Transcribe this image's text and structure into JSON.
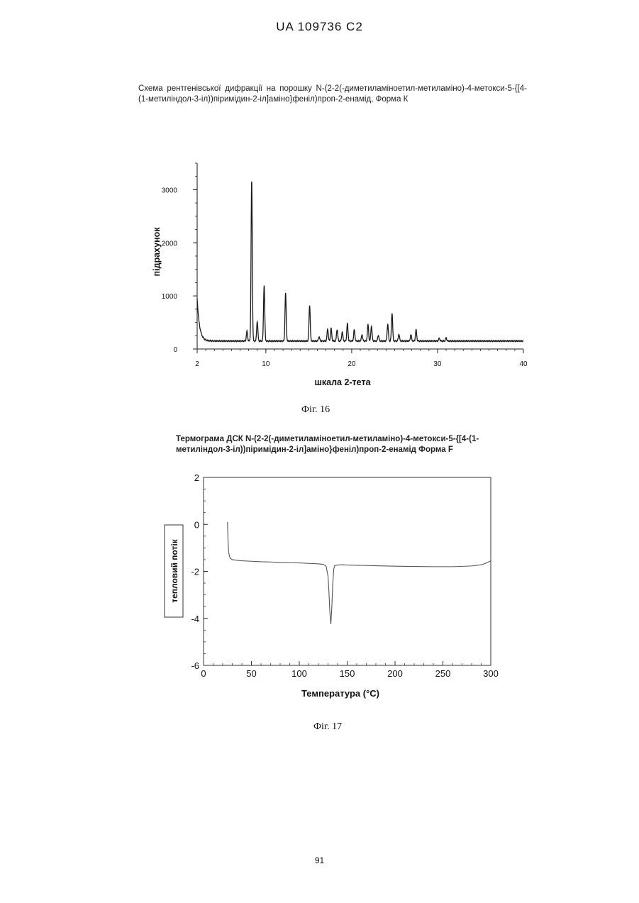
{
  "header": "UA   109736   C2",
  "figure16": {
    "caption": "Схема рентгенівської дифракції на порошку N-(2-2(-диметиламіноетил-метиламіно)-4-метокси-5-{[4-(1-метиліндол-3-іл))піримідин-2-іл]аміно}феніл)проп-2-енамід, Форма К",
    "label": "Фіг. 16"
  },
  "figure17": {
    "caption": "Термограма ДСК N-(2-2(-диметиламіноетил-метиламіно)-4-метокси-5-{[4-(1-метиліндол-3-іл))піримідин-2-іл]аміно}феніл)проп-2-енамід Форма F",
    "label": "Фіг. 17"
  },
  "page_number": "91",
  "chart_data": [
    {
      "type": "line",
      "xlabel": "шкала 2-тета",
      "ylabel": "підрахунок",
      "xlim": [
        2,
        40
      ],
      "ylim": [
        0,
        3500
      ],
      "x_ticks": [
        "2",
        "10",
        "20",
        "30",
        "40"
      ],
      "y_ticks": [
        "0",
        "1000",
        "2000",
        "3000"
      ],
      "x_tick_values": [
        2,
        10,
        20,
        30,
        40
      ],
      "y_tick_values": [
        0,
        1000,
        2000,
        3000
      ],
      "baseline": 150,
      "initial_rise": {
        "x": 2.0,
        "y": 950
      },
      "peaks": [
        {
          "x": 7.8,
          "y": 330
        },
        {
          "x": 8.35,
          "y": 3170
        },
        {
          "x": 9.0,
          "y": 520
        },
        {
          "x": 9.8,
          "y": 1200
        },
        {
          "x": 12.3,
          "y": 1050
        },
        {
          "x": 15.1,
          "y": 830
        },
        {
          "x": 16.2,
          "y": 230
        },
        {
          "x": 17.2,
          "y": 380
        },
        {
          "x": 17.6,
          "y": 390
        },
        {
          "x": 18.3,
          "y": 370
        },
        {
          "x": 18.9,
          "y": 320
        },
        {
          "x": 19.5,
          "y": 480
        },
        {
          "x": 20.3,
          "y": 360
        },
        {
          "x": 21.2,
          "y": 270
        },
        {
          "x": 21.9,
          "y": 460
        },
        {
          "x": 22.3,
          "y": 430
        },
        {
          "x": 23.1,
          "y": 260
        },
        {
          "x": 24.2,
          "y": 470
        },
        {
          "x": 24.7,
          "y": 680
        },
        {
          "x": 25.5,
          "y": 280
        },
        {
          "x": 26.9,
          "y": 270
        },
        {
          "x": 27.5,
          "y": 360
        },
        {
          "x": 30.2,
          "y": 200
        },
        {
          "x": 31.0,
          "y": 210
        }
      ]
    },
    {
      "type": "line",
      "xlabel": "Температура (°C)",
      "ylabel": "тепловий потік",
      "xlim": [
        0,
        300
      ],
      "ylim": [
        -6,
        2
      ],
      "x_ticks": [
        "0",
        "50",
        "100",
        "150",
        "200",
        "250",
        "300"
      ],
      "y_ticks": [
        "2",
        "0",
        "-2",
        "-4",
        "-6"
      ],
      "x_tick_values": [
        0,
        50,
        100,
        150,
        200,
        250,
        300
      ],
      "y_tick_values": [
        2,
        0,
        -2,
        -4,
        -6
      ],
      "series": [
        {
          "x": [
            25,
            25.5,
            26,
            27,
            28,
            30,
            35,
            40,
            50,
            60,
            70,
            80,
            90,
            100,
            110,
            120,
            125,
            128,
            130,
            131,
            132,
            133,
            134,
            135,
            136,
            137,
            140,
            145,
            150,
            160,
            180,
            200,
            220,
            240,
            260,
            280,
            290,
            295,
            300
          ],
          "y": [
            0.1,
            -0.6,
            -1.1,
            -1.35,
            -1.45,
            -1.5,
            -1.53,
            -1.55,
            -1.57,
            -1.59,
            -1.6,
            -1.62,
            -1.63,
            -1.64,
            -1.66,
            -1.68,
            -1.7,
            -1.78,
            -2.2,
            -2.9,
            -3.8,
            -4.25,
            -3.5,
            -2.5,
            -1.9,
            -1.75,
            -1.73,
            -1.72,
            -1.73,
            -1.74,
            -1.76,
            -1.78,
            -1.79,
            -1.8,
            -1.8,
            -1.77,
            -1.72,
            -1.65,
            -1.55
          ]
        }
      ]
    }
  ]
}
